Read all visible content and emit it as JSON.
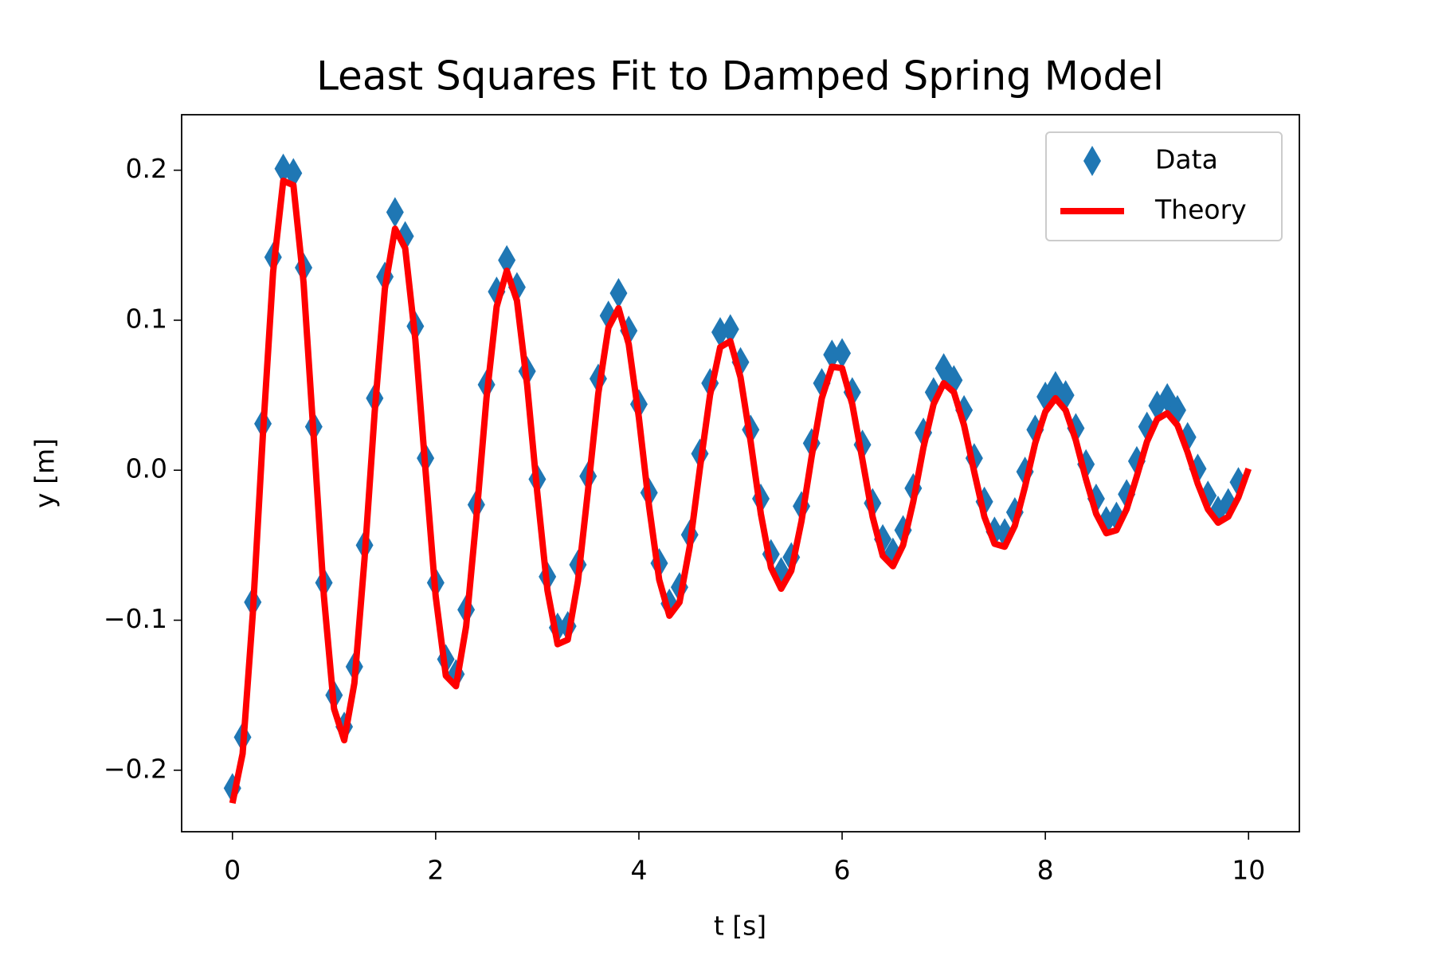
{
  "chart_data": {
    "type": "line",
    "title": "Least Squares Fit to Damped Spring Model",
    "x_label": "t [s]",
    "y_label": "y [m]",
    "xlim": [
      -0.5,
      10.5
    ],
    "ylim": [
      -0.241,
      0.237
    ],
    "xticks": [
      0,
      2,
      4,
      6,
      8,
      10
    ],
    "yticks": [
      {
        "value": -0.2,
        "label": "−0.2"
      },
      {
        "value": -0.1,
        "label": "−0.1"
      },
      {
        "value": 0,
        "label": "0.0"
      },
      0.1,
      0.2
    ],
    "legend": "upper right",
    "series": [
      {
        "name": "Data",
        "type": "scatter",
        "marker": "diamond",
        "color": "#1f77b4",
        "x": [
          0,
          0.1,
          0.2,
          0.3,
          0.4,
          0.5,
          0.6,
          0.7,
          0.8,
          0.9,
          1,
          1.1,
          1.2,
          1.3,
          1.4,
          1.5,
          1.6,
          1.7,
          1.8,
          1.9,
          2,
          2.1,
          2.2,
          2.3,
          2.4,
          2.5,
          2.6,
          2.7,
          2.8,
          2.9,
          3,
          3.1,
          3.2,
          3.3,
          3.4,
          3.5,
          3.6,
          3.7,
          3.8,
          3.9,
          4,
          4.1,
          4.2,
          4.3,
          4.4,
          4.5,
          4.6,
          4.7,
          4.8,
          4.9,
          5,
          5.1,
          5.2,
          5.3,
          5.4,
          5.5,
          5.6,
          5.7,
          5.8,
          5.9,
          6,
          6.1,
          6.2,
          6.3,
          6.4,
          6.5,
          6.6,
          6.7,
          6.8,
          6.9,
          7,
          7.1,
          7.2,
          7.3,
          7.4,
          7.5,
          7.6,
          7.7,
          7.8,
          7.9,
          8,
          8.1,
          8.2,
          8.3,
          8.4,
          8.5,
          8.6,
          8.7,
          8.8,
          8.9,
          9,
          9.1,
          9.2,
          9.3,
          9.4,
          9.5,
          9.6,
          9.7,
          9.8,
          9.9
        ],
        "values": [
          -0.212,
          -0.178,
          -0.088,
          0.031,
          0.142,
          0.201,
          0.198,
          0.135,
          0.029,
          -0.075,
          -0.15,
          -0.171,
          -0.131,
          -0.05,
          0.048,
          0.129,
          0.172,
          0.156,
          0.096,
          0.008,
          -0.075,
          -0.126,
          -0.136,
          -0.093,
          -0.023,
          0.057,
          0.119,
          0.14,
          0.122,
          0.066,
          -0.006,
          -0.071,
          -0.105,
          -0.104,
          -0.063,
          -0.004,
          0.061,
          0.103,
          0.118,
          0.093,
          0.044,
          -0.015,
          -0.062,
          -0.089,
          -0.078,
          -0.043,
          0.011,
          0.058,
          0.092,
          0.094,
          0.072,
          0.027,
          -0.019,
          -0.056,
          -0.068,
          -0.058,
          -0.024,
          0.018,
          0.058,
          0.077,
          0.078,
          0.052,
          0.017,
          -0.022,
          -0.046,
          -0.055,
          -0.04,
          -0.012,
          0.025,
          0.052,
          0.068,
          0.06,
          0.04,
          0.008,
          -0.021,
          -0.041,
          -0.042,
          -0.028,
          -0.001,
          0.027,
          0.049,
          0.056,
          0.05,
          0.028,
          0.004,
          -0.019,
          -0.034,
          -0.031,
          -0.016,
          0.006,
          0.029,
          0.043,
          0.048,
          0.04,
          0.022,
          0.001,
          -0.017,
          -0.027,
          -0.022,
          -0.008
        ]
      },
      {
        "name": "Theory",
        "type": "line",
        "color": "#ff0000",
        "x": [
          0,
          0.1,
          0.2,
          0.3,
          0.4,
          0.5,
          0.6,
          0.7,
          0.8,
          0.9,
          1,
          1.1,
          1.2,
          1.3,
          1.4,
          1.5,
          1.6,
          1.7,
          1.8,
          1.9,
          2,
          2.1,
          2.2,
          2.3,
          2.4,
          2.5,
          2.6,
          2.7,
          2.8,
          2.9,
          3,
          3.1,
          3.2,
          3.3,
          3.4,
          3.5,
          3.6,
          3.7,
          3.8,
          3.9,
          4,
          4.1,
          4.2,
          4.3,
          4.4,
          4.5,
          4.6,
          4.7,
          4.8,
          4.9,
          5,
          5.1,
          5.2,
          5.3,
          5.4,
          5.5,
          5.6,
          5.7,
          5.8,
          5.9,
          6,
          6.1,
          6.2,
          6.3,
          6.4,
          6.5,
          6.6,
          6.7,
          6.8,
          6.9,
          7,
          7.1,
          7.2,
          7.3,
          7.4,
          7.5,
          7.6,
          7.7,
          7.8,
          7.9,
          8,
          8.1,
          8.2,
          8.3,
          8.4,
          8.5,
          8.6,
          8.7,
          8.8,
          8.9,
          9,
          9.1,
          9.2,
          9.3,
          9.4,
          9.5,
          9.6,
          9.7,
          9.8,
          9.9,
          10
        ],
        "values": [
          -0.222,
          -0.189,
          -0.096,
          0.024,
          0.132,
          0.193,
          0.19,
          0.125,
          0.022,
          -0.084,
          -0.159,
          -0.18,
          -0.142,
          -0.059,
          0.039,
          0.121,
          0.161,
          0.148,
          0.087,
          0.0,
          -0.084,
          -0.137,
          -0.144,
          -0.104,
          -0.032,
          0.048,
          0.109,
          0.133,
          0.113,
          0.057,
          -0.015,
          -0.08,
          -0.116,
          -0.113,
          -0.074,
          -0.013,
          0.051,
          0.095,
          0.108,
          0.084,
          0.035,
          -0.024,
          -0.073,
          -0.097,
          -0.088,
          -0.051,
          0.001,
          0.05,
          0.082,
          0.086,
          0.062,
          0.019,
          -0.029,
          -0.065,
          -0.079,
          -0.067,
          -0.034,
          0.009,
          0.048,
          0.069,
          0.068,
          0.044,
          0.007,
          -0.031,
          -0.057,
          -0.064,
          -0.05,
          -0.021,
          0.015,
          0.044,
          0.058,
          0.052,
          0.03,
          -0.001,
          -0.031,
          -0.049,
          -0.051,
          -0.037,
          -0.011,
          0.018,
          0.039,
          0.048,
          0.04,
          0.02,
          -0.006,
          -0.029,
          -0.042,
          -0.04,
          -0.026,
          -0.004,
          0.019,
          0.034,
          0.038,
          0.03,
          0.012,
          -0.009,
          -0.026,
          -0.035,
          -0.031,
          -0.018,
          0.001
        ]
      }
    ]
  }
}
